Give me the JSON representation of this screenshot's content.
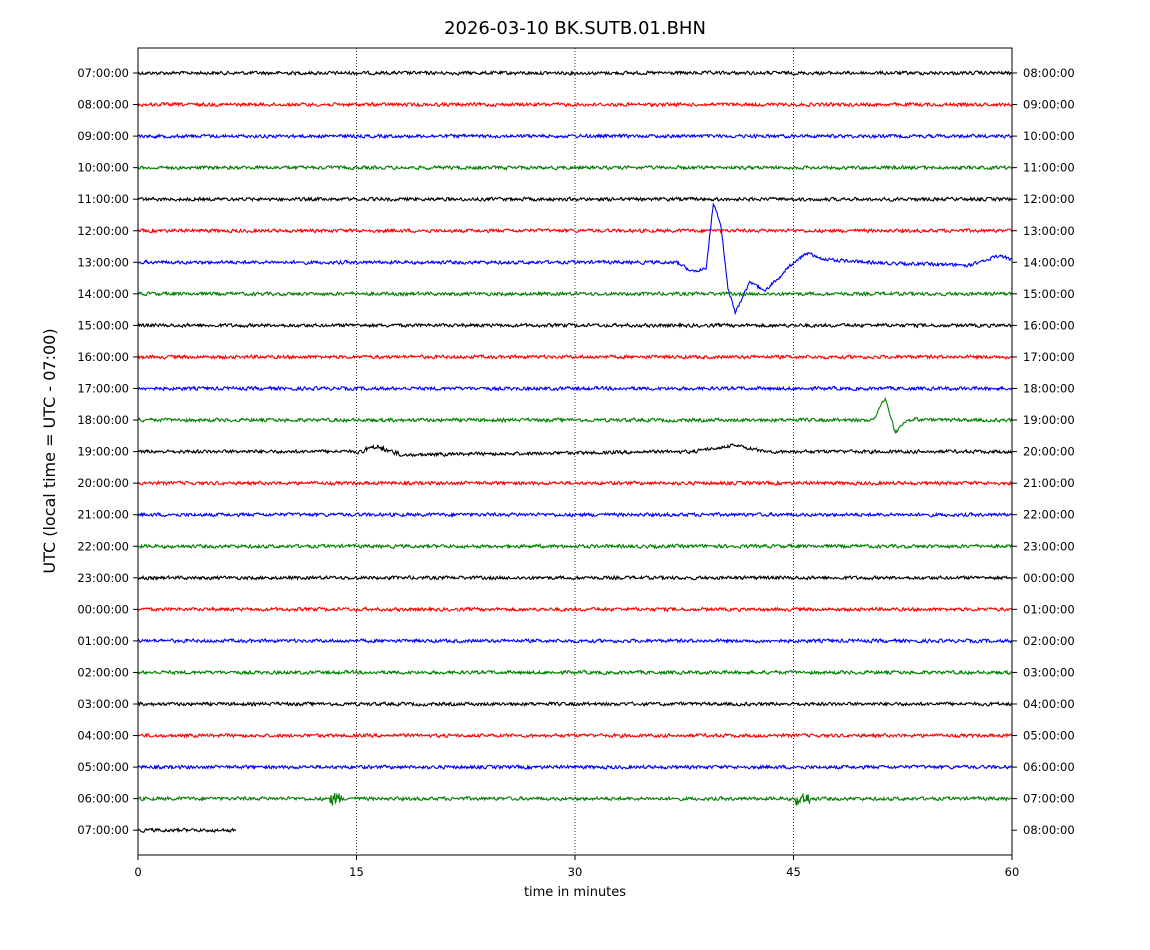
{
  "chart_data": {
    "type": "line",
    "title": "2026-03-10 BK.SUTB.01.BHN",
    "xlabel": "time in minutes",
    "ylabel": "UTC (local time = UTC - 07:00)",
    "xlim": [
      0,
      60
    ],
    "xticks": [
      0,
      15,
      30,
      45,
      60
    ],
    "grid": "vertical dotted lines at 15, 30, 45 minutes",
    "rows_left": [
      "07:00:00",
      "08:00:00",
      "09:00:00",
      "10:00:00",
      "11:00:00",
      "12:00:00",
      "13:00:00",
      "14:00:00",
      "15:00:00",
      "16:00:00",
      "17:00:00",
      "18:00:00",
      "19:00:00",
      "20:00:00",
      "21:00:00",
      "22:00:00",
      "23:00:00",
      "00:00:00",
      "01:00:00",
      "02:00:00",
      "03:00:00",
      "04:00:00",
      "05:00:00",
      "06:00:00",
      "07:00:00"
    ],
    "rows_right": [
      "08:00:00",
      "09:00:00",
      "10:00:00",
      "11:00:00",
      "12:00:00",
      "13:00:00",
      "14:00:00",
      "15:00:00",
      "16:00:00",
      "17:00:00",
      "18:00:00",
      "19:00:00",
      "20:00:00",
      "21:00:00",
      "22:00:00",
      "23:00:00",
      "00:00:00",
      "01:00:00",
      "02:00:00",
      "03:00:00",
      "04:00:00",
      "05:00:00",
      "06:00:00",
      "07:00:00",
      "08:00:00"
    ],
    "trace_colors": [
      "#000000",
      "#ff0000",
      "#0000ff",
      "#008000"
    ],
    "last_row_end_minute": 6.7,
    "events": [
      {
        "row": 6,
        "description": "large excursion",
        "points": [
          [
            37.0,
            0.0
          ],
          [
            38.0,
            -0.3
          ],
          [
            39.0,
            -0.2
          ],
          [
            39.5,
            1.9
          ],
          [
            40.0,
            1.2
          ],
          [
            40.5,
            -0.8
          ],
          [
            41.0,
            -1.6
          ],
          [
            42.0,
            -0.6
          ],
          [
            43.0,
            -0.9
          ],
          [
            44.0,
            -0.5
          ],
          [
            45.0,
            0.0
          ],
          [
            46.0,
            0.3
          ],
          [
            47.0,
            0.1
          ],
          [
            50.0,
            0.0
          ],
          [
            57.0,
            -0.1
          ],
          [
            59.0,
            0.2
          ],
          [
            60.0,
            0.1
          ]
        ]
      },
      {
        "row": 11,
        "description": "excursion",
        "points": [
          [
            50.5,
            0.0
          ],
          [
            51.3,
            0.7
          ],
          [
            52.0,
            -0.4
          ],
          [
            52.6,
            -0.1
          ],
          [
            53.5,
            0.1
          ]
        ]
      },
      {
        "row": 12,
        "description": "wander",
        "points": [
          [
            15.0,
            0.0
          ],
          [
            16.5,
            0.15
          ],
          [
            18.0,
            -0.1
          ],
          [
            38.0,
            0.0
          ],
          [
            41.0,
            0.2
          ],
          [
            43.0,
            0.0
          ]
        ]
      },
      {
        "row": 23,
        "description": "spike",
        "points": [
          [
            13.5,
            0.0
          ],
          [
            45.5,
            0.0
          ]
        ]
      }
    ]
  }
}
